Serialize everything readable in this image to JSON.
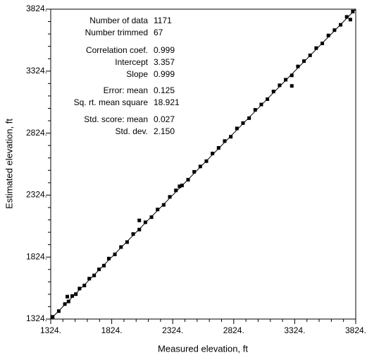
{
  "chart_data": {
    "type": "scatter",
    "x_label": "Measured elevation, ft",
    "y_label": "Estimated elevation, ft",
    "color": "#000000",
    "xlim": [
      1324,
      3824
    ],
    "ylim": [
      1324,
      3824
    ],
    "xticks": [
      {
        "value": 1324,
        "label": "1324."
      },
      {
        "value": 1824,
        "label": "1824."
      },
      {
        "value": 2324,
        "label": "2324."
      },
      {
        "value": 2824,
        "label": "2824."
      },
      {
        "value": 3324,
        "label": "3324."
      },
      {
        "value": 3824,
        "label": "3824."
      }
    ],
    "yticks": [
      {
        "value": 1324,
        "label": "1324."
      },
      {
        "value": 1824,
        "label": "1824."
      },
      {
        "value": 2324,
        "label": "2324."
      },
      {
        "value": 2824,
        "label": "2824."
      },
      {
        "value": 3324,
        "label": "3324."
      },
      {
        "value": 3824,
        "label": "3824."
      }
    ],
    "minor_ticks": [
      1424,
      1524,
      1624,
      1724,
      1924,
      2024,
      2124,
      2224,
      2424,
      2524,
      2624,
      2724,
      2924,
      3024,
      3124,
      3224,
      3424,
      3524,
      3624,
      3724
    ],
    "statistics": [
      {
        "label": "Number of data",
        "value": "1171"
      },
      {
        "label": "Number trimmed",
        "value": "67"
      },
      {
        "label": "Correlation coef.",
        "value": "0.999"
      },
      {
        "label": "Intercept",
        "value": "3.357"
      },
      {
        "label": "Slope",
        "value": "0.999"
      },
      {
        "label": "Error: mean",
        "value": "0.125"
      },
      {
        "label": "Sq. rt. mean square",
        "value": "18.921"
      },
      {
        "label": "Std. score: mean",
        "value": "0.027"
      },
      {
        "label": "Std. dev.",
        "value": "2.150"
      }
    ],
    "x": [
      1340,
      1390,
      1440,
      1460,
      1470,
      1500,
      1530,
      1560,
      1600,
      1640,
      1680,
      1720,
      1760,
      1800,
      1850,
      1900,
      1950,
      2000,
      2050,
      2050,
      2100,
      2150,
      2200,
      2250,
      2300,
      2350,
      2380,
      2400,
      2450,
      2500,
      2550,
      2600,
      2650,
      2700,
      2750,
      2800,
      2850,
      2900,
      2950,
      3000,
      3050,
      3100,
      3150,
      3200,
      3250,
      3300,
      3300,
      3350,
      3400,
      3450,
      3500,
      3550,
      3600,
      3650,
      3700,
      3750,
      3780,
      3800
    ],
    "y": [
      1342,
      1388,
      1445,
      1505,
      1466,
      1510,
      1525,
      1570,
      1595,
      1650,
      1676,
      1725,
      1755,
      1812,
      1846,
      1905,
      1945,
      2010,
      2046,
      2120,
      2105,
      2146,
      2208,
      2245,
      2310,
      2362,
      2395,
      2402,
      2448,
      2512,
      2555,
      2598,
      2660,
      2705,
      2760,
      2795,
      2862,
      2905,
      2945,
      3012,
      3055,
      3098,
      3160,
      3210,
      3255,
      3290,
      3205,
      3362,
      3405,
      3452,
      3510,
      3548,
      3612,
      3655,
      3698,
      3762,
      3740,
      3805
    ]
  }
}
